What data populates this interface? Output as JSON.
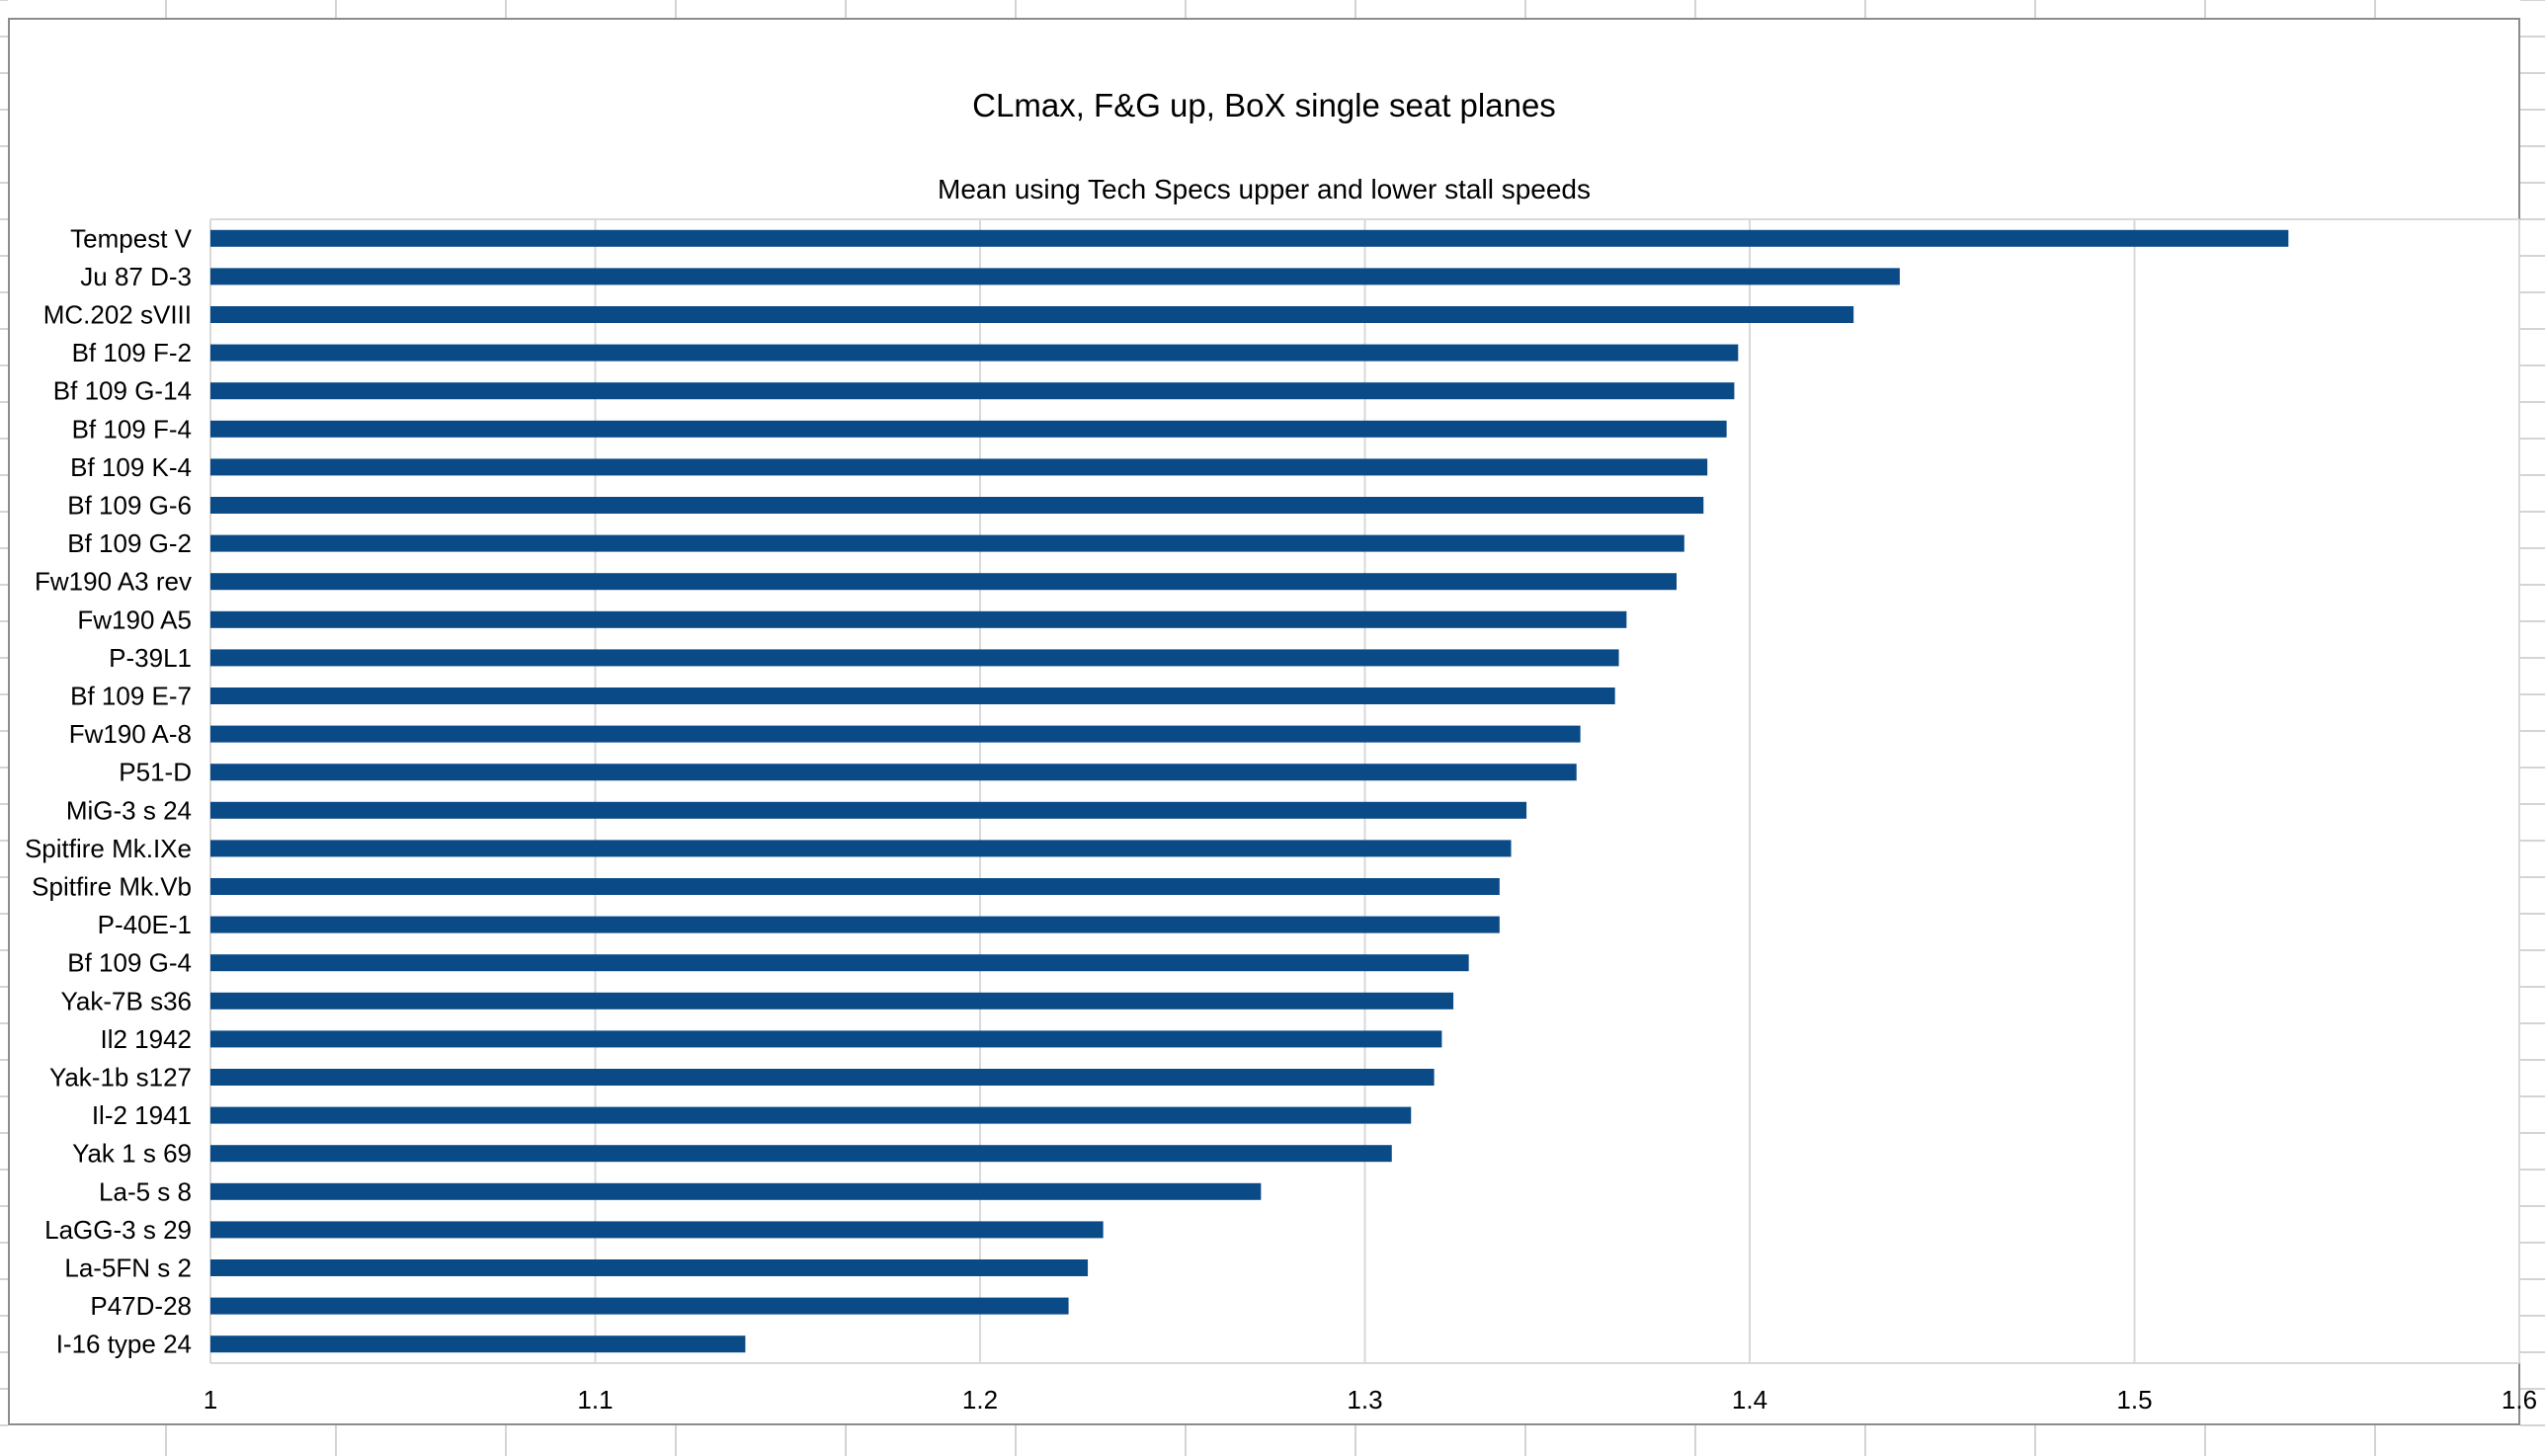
{
  "chart_data": {
    "type": "bar",
    "orientation": "horizontal",
    "title": "CLmax, F&G up,  BoX single seat planes",
    "subtitle": "Mean using Tech Specs upper and lower stall speeds",
    "xlabel": "",
    "ylabel": "",
    "xlim": [
      1,
      1.6
    ],
    "x_ticks": [
      1,
      1.1,
      1.2,
      1.3,
      1.4,
      1.5,
      1.6
    ],
    "x_tick_labels": [
      "1",
      "1.1",
      "1.2",
      "1.3",
      "1.4",
      "1.5",
      "1.6"
    ],
    "grid": true,
    "legend": "none",
    "bar_color": "#0a4a87",
    "categories": [
      "Tempest V",
      "Ju 87 D-3",
      "MC.202 sVIII",
      "Bf 109 F-2",
      "Bf 109 G-14",
      "Bf 109 F-4",
      "Bf 109 K-4",
      "Bf 109 G-6",
      "Bf 109 G-2",
      "Fw190 A3 rev",
      "Fw190 A5",
      "P-39L1",
      "Bf 109 E-7",
      "Fw190 A-8",
      "P51-D",
      "MiG-3 s 24",
      "Spitfire Mk.IXe",
      "Spitfire Mk.Vb",
      "P-40E-1",
      "Bf 109 G-4",
      "Yak-7B s36",
      "Il2 1942",
      "Yak-1b s127",
      "Il-2 1941",
      "Yak 1 s 69",
      "La-5 s 8",
      "LaGG-3 s 29",
      "La-5FN s 2",
      "P47D-28",
      "I-16 type 24"
    ],
    "values": [
      1.54,
      1.439,
      1.427,
      1.397,
      1.396,
      1.394,
      1.389,
      1.388,
      1.383,
      1.381,
      1.368,
      1.366,
      1.365,
      1.356,
      1.355,
      1.342,
      1.338,
      1.335,
      1.335,
      1.327,
      1.323,
      1.32,
      1.318,
      1.312,
      1.307,
      1.273,
      1.232,
      1.228,
      1.223,
      1.139
    ]
  },
  "colors": {
    "sheet_gridline": "#d4d4d4",
    "chart_border": "#8c8c8c",
    "plot_gridline": "#d9d9d9"
  }
}
